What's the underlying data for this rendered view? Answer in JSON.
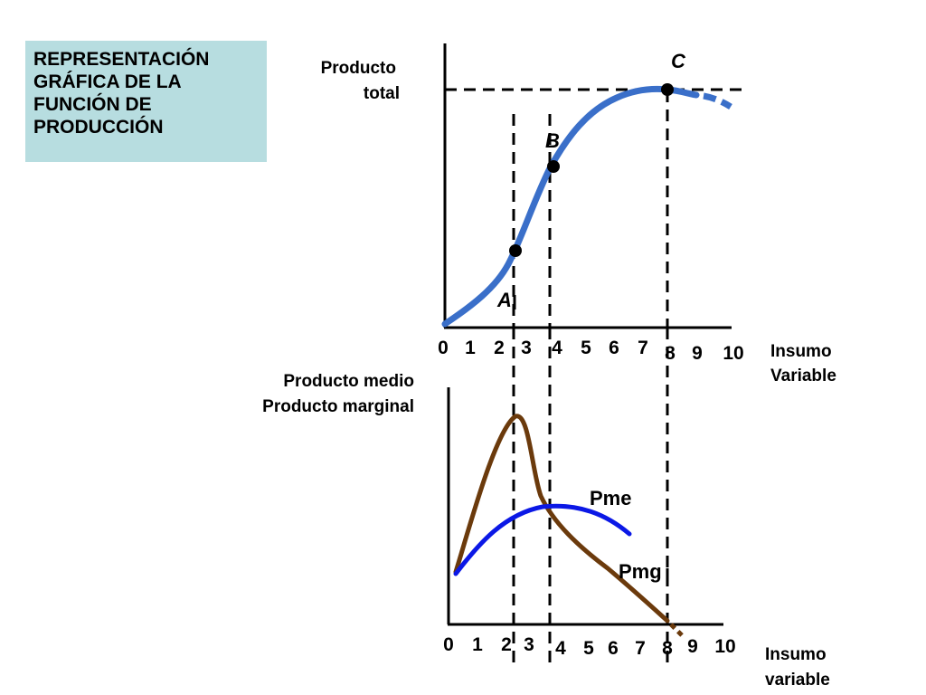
{
  "title": {
    "lines": [
      "REPRESENTACIÓN",
      "GRÁFICA DE LA",
      "FUNCIÓN DE",
      "PRODUCCIÓN"
    ]
  },
  "top_chart": {
    "ylabel_lines": [
      "Producto",
      "total"
    ],
    "xlabel_lines": [
      "Insumo",
      "Variable"
    ],
    "ticks": [
      "0",
      "1",
      "2",
      "3",
      "4",
      "5",
      "6",
      "7",
      "8",
      "9",
      "10"
    ],
    "points": {
      "a": "A",
      "b": "B",
      "c": "C"
    },
    "curve_color": "#3a6fc9"
  },
  "bottom_chart": {
    "ylabel_lines": [
      "Producto medio",
      "Producto marginal"
    ],
    "xlabel_lines": [
      "Insumo",
      "variable"
    ],
    "ticks": [
      "0",
      "1",
      "2",
      "3",
      "4",
      "5",
      "6",
      "7",
      "8",
      "9",
      "10"
    ],
    "curves": {
      "pme": "Pme",
      "pmg": "Pmg"
    },
    "pme_color": "#0b18e6",
    "pmg_color": "#6b3a0c"
  }
}
